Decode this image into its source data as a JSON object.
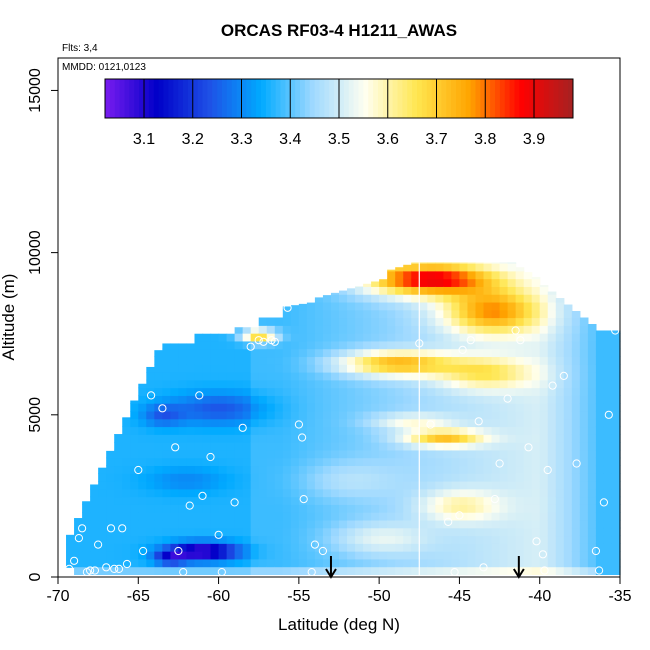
{
  "chart_data": {
    "type": "heatmap",
    "title": "ORCAS RF03-4 H1211_AWAS",
    "notes": {
      "flights": "Flts: 3,4",
      "dates": "MMDD: 0121,0123"
    },
    "xlabel": "Latitude (deg N)",
    "ylabel": "Altitude (m)",
    "xlim": [
      -70,
      -35
    ],
    "ylim": [
      0,
      16000
    ],
    "xticks": [
      -70,
      -65,
      -60,
      -55,
      -50,
      -45,
      -40,
      -35
    ],
    "xtick_labels": [
      "-70",
      "-65",
      "-60",
      "-55",
      "-50",
      "-45",
      "-40",
      "-35"
    ],
    "yticks": [
      0,
      5000,
      10000,
      15000
    ],
    "ytick_labels": [
      "0",
      "5000",
      "10000",
      "15000"
    ],
    "colorbar": {
      "range": [
        3.02,
        3.98
      ],
      "ticks": [
        3.1,
        3.2,
        3.3,
        3.4,
        3.5,
        3.6,
        3.7,
        3.8,
        3.9
      ],
      "tick_labels": [
        "3.1",
        "3.2",
        "3.3",
        "3.4",
        "3.5",
        "3.6",
        "3.7",
        "3.8",
        "3.9"
      ],
      "colors": [
        "#7a1cf0",
        "#0000c8",
        "#1e50e6",
        "#00aaff",
        "#9fd9ff",
        "#fffff0",
        "#ffe650",
        "#ffa500",
        "#ff0000",
        "#a52222"
      ]
    },
    "reference_line_lat": -47.5,
    "arrows_lat": [
      -53,
      -41.3
    ],
    "samples": [
      [
        -69.3,
        250
      ],
      [
        -69.0,
        500
      ],
      [
        -68.7,
        1200
      ],
      [
        -68.5,
        1500
      ],
      [
        -68.2,
        150
      ],
      [
        -68.0,
        200
      ],
      [
        -67.7,
        200
      ],
      [
        -67.5,
        1000
      ],
      [
        -67.0,
        300
      ],
      [
        -66.7,
        1500
      ],
      [
        -66.5,
        250
      ],
      [
        -66.2,
        250
      ],
      [
        -66.0,
        1500
      ],
      [
        -65.7,
        400
      ],
      [
        -65.0,
        3300
      ],
      [
        -64.7,
        800
      ],
      [
        -64.5,
        7100
      ],
      [
        -64.2,
        5600
      ],
      [
        -63.5,
        5200
      ],
      [
        -62.7,
        4000
      ],
      [
        -62.5,
        800
      ],
      [
        -62.2,
        150
      ],
      [
        -61.8,
        2200
      ],
      [
        -61.2,
        5600
      ],
      [
        -61.0,
        2500
      ],
      [
        -60.5,
        3700
      ],
      [
        -60.0,
        1300
      ],
      [
        -59.8,
        150
      ],
      [
        -59.0,
        2300
      ],
      [
        -58.5,
        4600
      ],
      [
        -58.0,
        7100
      ],
      [
        -57.5,
        7300
      ],
      [
        -57.2,
        7250
      ],
      [
        -56.7,
        7300
      ],
      [
        -56.5,
        7250
      ],
      [
        -55.7,
        8300
      ],
      [
        -55.0,
        4700
      ],
      [
        -54.8,
        4300
      ],
      [
        -54.7,
        2400
      ],
      [
        -54.2,
        150
      ],
      [
        -54.0,
        1000
      ],
      [
        -53.5,
        800
      ],
      [
        -47.5,
        7200
      ],
      [
        -46.8,
        4700
      ],
      [
        -45.7,
        1700
      ],
      [
        -45.3,
        150
      ],
      [
        -45.0,
        1900
      ],
      [
        -44.8,
        7000
      ],
      [
        -44.3,
        7300
      ],
      [
        -43.8,
        4800
      ],
      [
        -43.5,
        300
      ],
      [
        -42.8,
        2400
      ],
      [
        -42.5,
        3500
      ],
      [
        -42.0,
        5500
      ],
      [
        -41.5,
        7600
      ],
      [
        -41.2,
        7300
      ],
      [
        -40.7,
        4000
      ],
      [
        -40.2,
        1100
      ],
      [
        -39.8,
        700
      ],
      [
        -39.7,
        200
      ],
      [
        -39.5,
        3300
      ],
      [
        -39.2,
        5900
      ],
      [
        -38.5,
        6200
      ],
      [
        -37.7,
        3500
      ],
      [
        -36.5,
        800
      ],
      [
        -36.3,
        200
      ],
      [
        -36.0,
        2300
      ],
      [
        -35.7,
        5000
      ],
      [
        -35.3,
        7600
      ]
    ]
  }
}
